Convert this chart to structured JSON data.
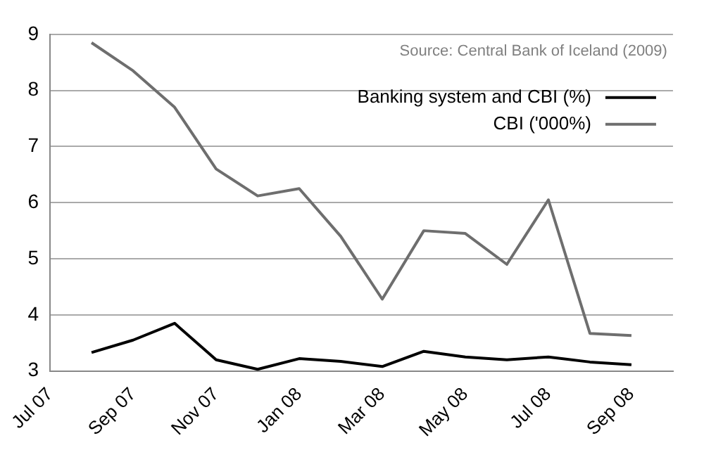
{
  "chart_data": {
    "type": "line",
    "categories": [
      "Jul 07",
      null,
      "Sep 07",
      null,
      "Nov 07",
      null,
      "Jan 08",
      null,
      "Mar 08",
      null,
      "May 08",
      null,
      "Jul 08",
      null,
      "Sep 08",
      null
    ],
    "series": [
      {
        "name": "Banking system and CBI (%)",
        "color": "#000000",
        "values": [
          null,
          3.33,
          3.55,
          3.85,
          3.2,
          3.03,
          3.22,
          3.17,
          3.08,
          3.35,
          3.25,
          3.2,
          3.25,
          3.16,
          3.11,
          null
        ]
      },
      {
        "name": "CBI ('000%)",
        "color": "#6e6e6e",
        "values": [
          null,
          8.85,
          8.35,
          7.7,
          6.6,
          6.12,
          6.25,
          5.4,
          4.28,
          5.5,
          5.45,
          4.9,
          6.05,
          3.67,
          3.63,
          null
        ]
      }
    ],
    "ylim": [
      3,
      9
    ],
    "yticks": [
      3,
      4,
      5,
      6,
      7,
      8,
      9
    ],
    "grid": "y",
    "legend": "top right",
    "marker": "none",
    "line_style": "solid",
    "annotations": [
      "Source: Central Bank of Iceland (2009)"
    ]
  }
}
